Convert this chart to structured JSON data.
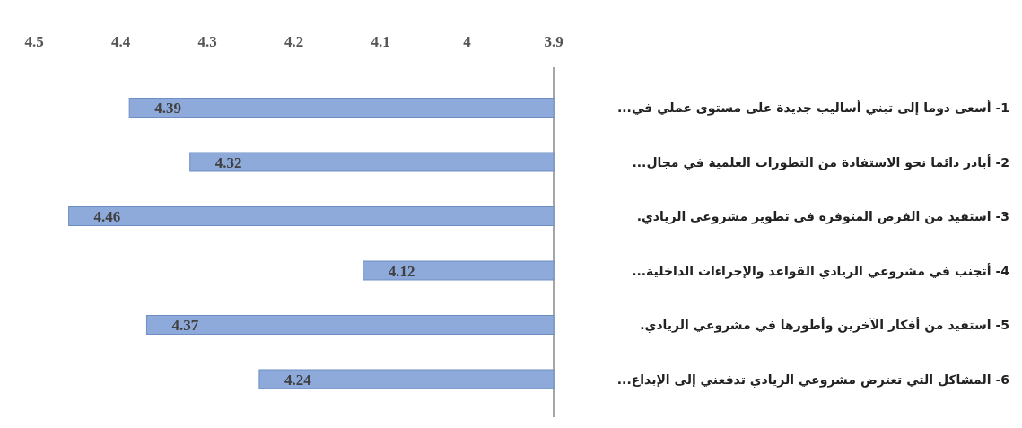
{
  "chart_data": {
    "type": "bar",
    "orientation": "horizontal",
    "categories": [
      "1- أسعى دوما إلى تبني أساليب جديدة على مستوى عملي في...",
      "2- أبادر دائما نحو الاستفادة من التطورات العلمية في مجال...",
      "3- استفيد من الفرص المتوفرة في تطوير مشروعي الريادي.",
      "4- أتجنب في مشروعي الريادي القواعد والإجراءات الداخلية...",
      "5- استفيد من أفكار الآخرين وأطورها في مشروعي الريادي.",
      "6- المشاكل التي تعترض مشروعي الريادي تدفعني إلى الإبداع..."
    ],
    "values": [
      4.39,
      4.32,
      4.46,
      4.12,
      4.37,
      4.24
    ],
    "color": "#8eaadb",
    "xlim": [
      4.5,
      3.9
    ],
    "xticks": [
      4.5,
      4.4,
      4.3,
      4.2,
      4.1,
      4,
      3.9
    ],
    "data_labels": true
  }
}
